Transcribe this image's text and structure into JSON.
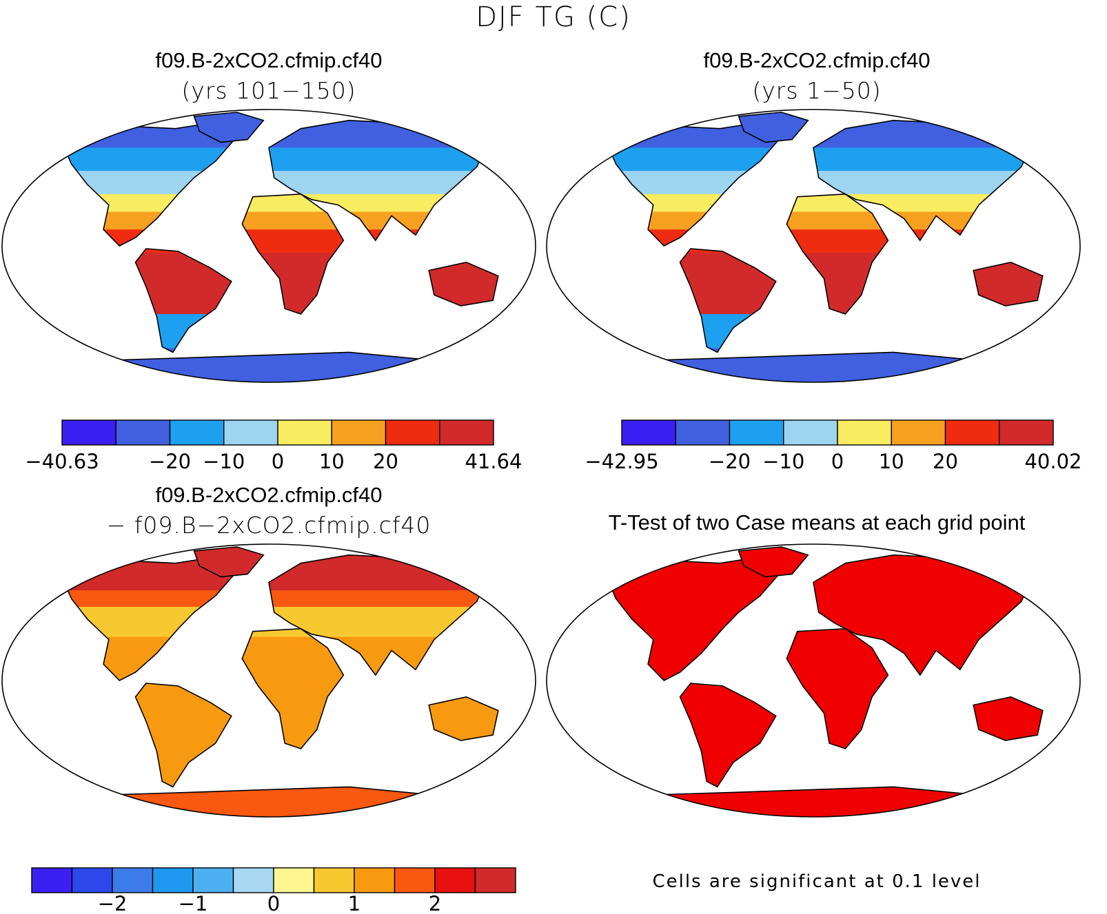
{
  "title": "DJF TG (C)",
  "panels": [
    {
      "id": "p1",
      "case": "f09.B-2xCO2.cfmip.cf40",
      "period": "(yrs 101−150)"
    },
    {
      "id": "p2",
      "case": "f09.B-2xCO2.cfmip.cf40",
      "period": "(yrs 1−50)"
    },
    {
      "id": "p3",
      "case": "f09.B-2xCO2.cfmip.cf40",
      "period": "− f09.B−2xCO2.cfmip.cf40"
    },
    {
      "id": "p4",
      "case": "T-Test of two Case means at each grid point",
      "period": ""
    }
  ],
  "colorbars": [
    {
      "id": "cb1",
      "colors": [
        "#3b1ff2",
        "#4060e0",
        "#1ea0f0",
        "#9dd4f0",
        "#f8ec60",
        "#f8a020",
        "#f02c10",
        "#d22a2a"
      ],
      "labels": [
        "−40.63",
        "",
        "−20",
        "−10",
        "0",
        "10",
        "20",
        "",
        "41.64"
      ]
    },
    {
      "id": "cb2",
      "colors": [
        "#3b1ff2",
        "#4060e0",
        "#1ea0f0",
        "#9dd4f0",
        "#f8ec60",
        "#f8a020",
        "#f02c10",
        "#d22a2a"
      ],
      "labels": [
        "−42.95",
        "",
        "−20",
        "−10",
        "0",
        "10",
        "20",
        "",
        "40.02"
      ]
    },
    {
      "id": "cb3",
      "colors": [
        "#3b1ff2",
        "#2c48ea",
        "#3c7ce8",
        "#1e98f0",
        "#4cb0f0",
        "#a8d8f2",
        "#fff690",
        "#f8c830",
        "#f89a10",
        "#f85810",
        "#e81010",
        "#d22a2a"
      ],
      "labels": [
        "",
        "−2",
        "",
        "−1",
        "",
        "0",
        "",
        "1",
        "",
        "2",
        "",
        ""
      ]
    }
  ],
  "significance_note": "Cells are significant at 0.1 level",
  "colors": {
    "land_p1": "#e8302a",
    "land_p2": "#e8302a",
    "land_p3": "#f89a10",
    "land_p4": "#f00000"
  }
}
